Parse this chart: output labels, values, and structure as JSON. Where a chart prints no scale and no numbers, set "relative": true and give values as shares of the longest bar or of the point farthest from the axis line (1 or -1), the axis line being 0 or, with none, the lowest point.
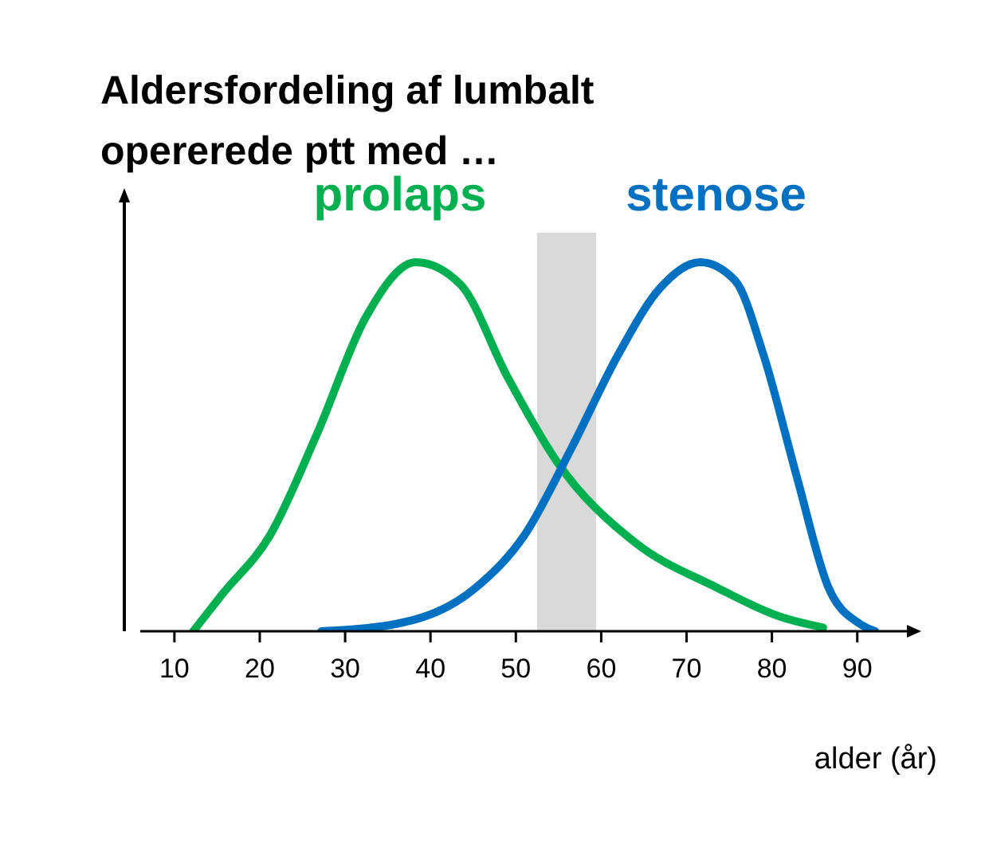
{
  "chart_data": {
    "type": "line",
    "title": "Aldersfordeling af lumbalt opererede ptt med …",
    "xlabel": "alder  (år)",
    "relative": true,
    "xlim": [
      6,
      96
    ],
    "xticks": [
      10,
      20,
      30,
      40,
      50,
      60,
      70,
      80,
      90
    ],
    "grid": false,
    "marker": "none",
    "line_style": "solid",
    "bands": [
      {
        "axis": "x",
        "from": 52.5,
        "to": 59.4,
        "color": "#d9d9d9"
      }
    ],
    "series": [
      {
        "name": "prolaps",
        "color": "#00b050",
        "x": [
          12.2,
          15.6,
          21.2,
          26.8,
          32.4,
          38.3,
          43.5,
          49,
          54.8,
          64,
          73.4,
          80.9,
          86
        ],
        "values": [
          0,
          0.1,
          0.26,
          0.54,
          0.85,
          1,
          0.94,
          0.69,
          0.46,
          0.24,
          0.12,
          0.04,
          0.01
        ]
      },
      {
        "name": "stenose",
        "color": "#0070c0",
        "x": [
          27.2,
          36,
          45.4,
          51,
          56.6,
          62,
          66.9,
          71.6,
          75.7,
          79,
          82.9,
          86.6,
          90.3,
          92.1
        ],
        "values": [
          0,
          0.02,
          0.12,
          0.26,
          0.5,
          0.75,
          0.93,
          1,
          0.95,
          0.75,
          0.42,
          0.12,
          0.02,
          0
        ]
      }
    ]
  }
}
